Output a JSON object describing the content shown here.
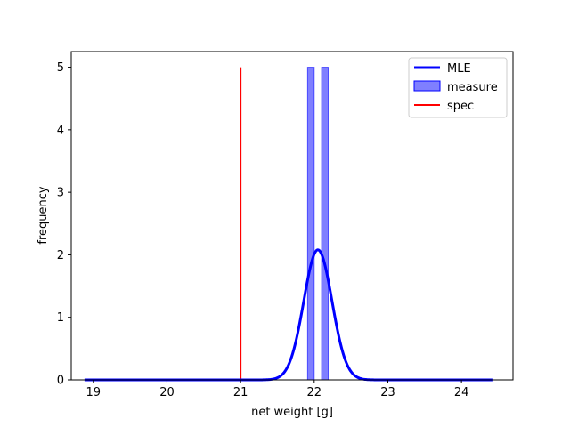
{
  "chart_data": {
    "type": "bar",
    "xlabel": "net weight [g]",
    "ylabel": "frequency",
    "xlim": [
      18.7,
      24.7
    ],
    "ylim": [
      0,
      5.25
    ],
    "xticks": [
      19,
      20,
      21,
      22,
      23,
      24
    ],
    "yticks": [
      0,
      1,
      2,
      3,
      4,
      5
    ],
    "grid": false,
    "legend_position": "upper-right",
    "histogram": {
      "name": "measure",
      "color": "#0000ff",
      "bins": [
        {
          "x0": 21.91,
          "x1": 22.0,
          "value": 5
        },
        {
          "x0": 22.1,
          "x1": 22.19,
          "value": 5
        }
      ]
    },
    "mle_curve": {
      "name": "MLE",
      "color": "#0000ff",
      "type": "line",
      "mean": 22.05,
      "peak": 2.08,
      "x_range": [
        18.88,
        24.42
      ]
    },
    "spec_line": {
      "name": "spec",
      "color": "#ff0000",
      "type": "vline",
      "x": 21.0,
      "y_range": [
        0,
        5
      ]
    },
    "legend": [
      "MLE",
      "measure",
      "spec"
    ]
  }
}
